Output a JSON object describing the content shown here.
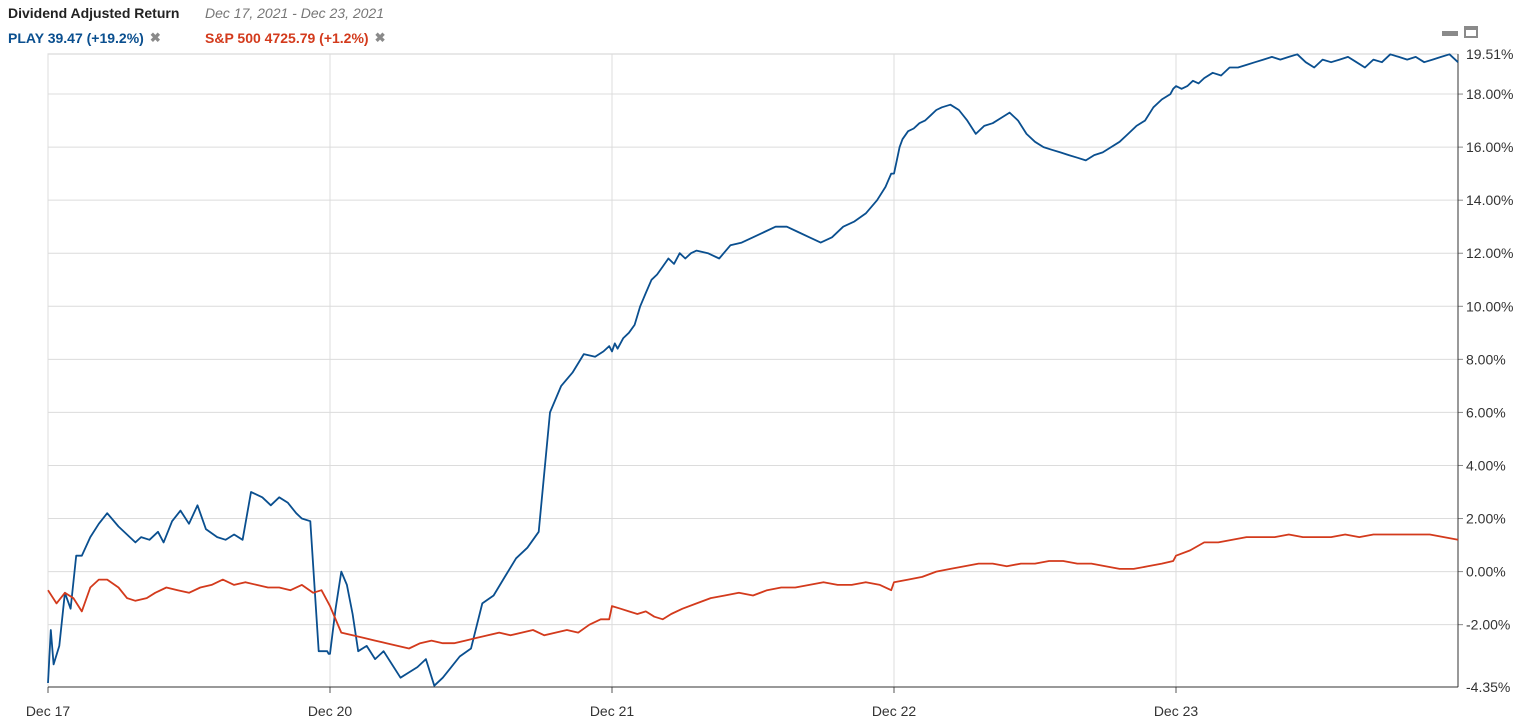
{
  "header": {
    "title": "Dividend Adjusted Return",
    "date_range": "Dec 17, 2021 - Dec 23, 2021"
  },
  "legend": [
    {
      "label": "PLAY 39.47 (+19.2%)",
      "color": "#0a4f8f",
      "remove_icon": "✖"
    },
    {
      "label": "S&P 500 4725.79 (+1.2%)",
      "color": "#d33a1c",
      "remove_icon": "✖"
    }
  ],
  "window_controls": {
    "minimize": "minimize-icon",
    "maximize": "maximize-icon"
  },
  "chart_data": {
    "type": "line",
    "x_ticks": [
      "Dec 17",
      "Dec 20",
      "Dec 21",
      "Dec 22",
      "Dec 23"
    ],
    "y_ticks": [
      "0.00%",
      "2.00%",
      "4.00%",
      "6.00%",
      "8.00%",
      "10.00%",
      "12.00%",
      "14.00%",
      "16.00%",
      "18.00%"
    ],
    "y_tick_values": [
      0,
      2,
      4,
      6,
      8,
      10,
      12,
      14,
      16,
      18
    ],
    "y_extra_ticks": [
      "-2.00%"
    ],
    "y_extra_tick_values": [
      -2
    ],
    "y_max_label": "19.51%",
    "y_min_label": "-4.35%",
    "ylim": [
      -4.35,
      19.51
    ],
    "xlim": [
      0,
      5
    ],
    "grid": true,
    "series": [
      {
        "name": "PLAY",
        "color": "#0a4f8f",
        "x": [
          0,
          0.01,
          0.02,
          0.04,
          0.06,
          0.08,
          0.1,
          0.12,
          0.15,
          0.18,
          0.21,
          0.25,
          0.28,
          0.31,
          0.33,
          0.36,
          0.39,
          0.41,
          0.44,
          0.47,
          0.5,
          0.53,
          0.56,
          0.6,
          0.63,
          0.66,
          0.69,
          0.72,
          0.76,
          0.79,
          0.82,
          0.85,
          0.88,
          0.9,
          0.93,
          0.96,
          0.99,
          0.995,
          1.0,
          1.02,
          1.04,
          1.06,
          1.08,
          1.1,
          1.13,
          1.16,
          1.19,
          1.22,
          1.25,
          1.28,
          1.31,
          1.34,
          1.37,
          1.4,
          1.43,
          1.46,
          1.5,
          1.54,
          1.58,
          1.62,
          1.66,
          1.7,
          1.74,
          1.78,
          1.82,
          1.86,
          1.9,
          1.94,
          1.97,
          1.99,
          2.0,
          2.01,
          2.02,
          2.04,
          2.06,
          2.08,
          2.1,
          2.12,
          2.14,
          2.16,
          2.18,
          2.2,
          2.22,
          2.24,
          2.26,
          2.28,
          2.3,
          2.34,
          2.38,
          2.42,
          2.46,
          2.5,
          2.54,
          2.58,
          2.62,
          2.66,
          2.7,
          2.74,
          2.78,
          2.82,
          2.86,
          2.9,
          2.94,
          2.97,
          2.99,
          3.0,
          3.01,
          3.02,
          3.03,
          3.05,
          3.07,
          3.09,
          3.11,
          3.13,
          3.15,
          3.17,
          3.2,
          3.23,
          3.26,
          3.29,
          3.32,
          3.35,
          3.38,
          3.41,
          3.44,
          3.47,
          3.5,
          3.53,
          3.56,
          3.59,
          3.62,
          3.65,
          3.68,
          3.71,
          3.74,
          3.77,
          3.8,
          3.83,
          3.86,
          3.89,
          3.92,
          3.95,
          3.98,
          3.99,
          4.0,
          4.02,
          4.04,
          4.06,
          4.08,
          4.1,
          4.13,
          4.16,
          4.19,
          4.22,
          4.25,
          4.28,
          4.31,
          4.34,
          4.37,
          4.4,
          4.43,
          4.46,
          4.49,
          4.52,
          4.55,
          4.58,
          4.61,
          4.64,
          4.67,
          4.7,
          4.73,
          4.76,
          4.79,
          4.82,
          4.85,
          4.88,
          4.91,
          4.94,
          4.97,
          5.0
        ],
        "values": [
          -4.2,
          -2.2,
          -3.5,
          -2.8,
          -0.8,
          -1.4,
          0.6,
          0.6,
          1.3,
          1.8,
          2.2,
          1.7,
          1.4,
          1.1,
          1.3,
          1.2,
          1.5,
          1.1,
          1.9,
          2.3,
          1.8,
          2.5,
          1.6,
          1.3,
          1.2,
          1.4,
          1.2,
          3.0,
          2.8,
          2.5,
          2.8,
          2.6,
          2.2,
          2.0,
          1.9,
          -3.0,
          -3.0,
          -3.1,
          -3.1,
          -1.4,
          0.0,
          -0.5,
          -1.6,
          -3.0,
          -2.8,
          -3.3,
          -3.0,
          -3.5,
          -4.0,
          -3.8,
          -3.6,
          -3.3,
          -4.3,
          -4.0,
          -3.6,
          -3.2,
          -2.9,
          -1.2,
          -0.9,
          -0.2,
          0.5,
          0.9,
          1.5,
          6.0,
          7.0,
          7.5,
          8.2,
          8.1,
          8.3,
          8.5,
          8.3,
          8.6,
          8.4,
          8.8,
          9.0,
          9.3,
          10.0,
          10.5,
          11.0,
          11.2,
          11.5,
          11.8,
          11.6,
          12.0,
          11.8,
          12.0,
          12.1,
          12.0,
          11.8,
          12.3,
          12.4,
          12.6,
          12.8,
          13.0,
          13.0,
          12.8,
          12.6,
          12.4,
          12.6,
          13.0,
          13.2,
          13.5,
          14.0,
          14.5,
          15.0,
          15.0,
          15.5,
          16.0,
          16.3,
          16.6,
          16.7,
          16.9,
          17.0,
          17.2,
          17.4,
          17.5,
          17.6,
          17.4,
          17.0,
          16.5,
          16.8,
          16.9,
          17.1,
          17.3,
          17.0,
          16.5,
          16.2,
          16.0,
          15.9,
          15.8,
          15.7,
          15.6,
          15.5,
          15.7,
          15.8,
          16.0,
          16.2,
          16.5,
          16.8,
          17.0,
          17.5,
          17.8,
          18.0,
          18.2,
          18.3,
          18.2,
          18.3,
          18.5,
          18.4,
          18.6,
          18.8,
          18.7,
          19.0,
          19.0,
          19.1,
          19.2,
          19.3,
          19.4,
          19.3,
          19.4,
          19.5,
          19.2,
          19.0,
          19.3,
          19.2,
          19.3,
          19.4,
          19.2,
          19.0,
          19.3,
          19.2,
          19.5,
          19.4,
          19.3,
          19.4,
          19.2,
          19.3,
          19.4,
          19.5,
          19.2
        ]
      },
      {
        "name": "S&P 500",
        "color": "#d33a1c",
        "x": [
          0,
          0.03,
          0.06,
          0.09,
          0.12,
          0.15,
          0.18,
          0.21,
          0.25,
          0.28,
          0.31,
          0.35,
          0.38,
          0.42,
          0.46,
          0.5,
          0.54,
          0.58,
          0.62,
          0.66,
          0.7,
          0.74,
          0.78,
          0.82,
          0.86,
          0.9,
          0.94,
          0.97,
          0.99,
          1.0,
          1.04,
          1.08,
          1.12,
          1.16,
          1.2,
          1.24,
          1.28,
          1.32,
          1.36,
          1.4,
          1.44,
          1.48,
          1.52,
          1.56,
          1.6,
          1.64,
          1.68,
          1.72,
          1.76,
          1.8,
          1.84,
          1.88,
          1.92,
          1.96,
          1.99,
          2.0,
          2.03,
          2.06,
          2.09,
          2.12,
          2.15,
          2.18,
          2.21,
          2.25,
          2.3,
          2.35,
          2.4,
          2.45,
          2.5,
          2.55,
          2.6,
          2.65,
          2.7,
          2.75,
          2.8,
          2.85,
          2.9,
          2.95,
          2.99,
          3.0,
          3.05,
          3.1,
          3.15,
          3.2,
          3.25,
          3.3,
          3.35,
          3.4,
          3.45,
          3.5,
          3.55,
          3.6,
          3.65,
          3.7,
          3.75,
          3.8,
          3.85,
          3.9,
          3.95,
          3.99,
          4.0,
          4.05,
          4.1,
          4.15,
          4.2,
          4.25,
          4.3,
          4.35,
          4.4,
          4.45,
          4.5,
          4.55,
          4.6,
          4.65,
          4.7,
          4.75,
          4.8,
          4.85,
          4.9,
          4.95,
          5.0
        ],
        "values": [
          -0.7,
          -1.2,
          -0.8,
          -1.0,
          -1.5,
          -0.6,
          -0.3,
          -0.3,
          -0.6,
          -1.0,
          -1.1,
          -1.0,
          -0.8,
          -0.6,
          -0.7,
          -0.8,
          -0.6,
          -0.5,
          -0.3,
          -0.5,
          -0.4,
          -0.5,
          -0.6,
          -0.6,
          -0.7,
          -0.5,
          -0.8,
          -0.7,
          -1.1,
          -1.3,
          -2.3,
          -2.4,
          -2.5,
          -2.6,
          -2.7,
          -2.8,
          -2.9,
          -2.7,
          -2.6,
          -2.7,
          -2.7,
          -2.6,
          -2.5,
          -2.4,
          -2.3,
          -2.4,
          -2.3,
          -2.2,
          -2.4,
          -2.3,
          -2.2,
          -2.3,
          -2.0,
          -1.8,
          -1.8,
          -1.3,
          -1.4,
          -1.5,
          -1.6,
          -1.5,
          -1.7,
          -1.8,
          -1.6,
          -1.4,
          -1.2,
          -1.0,
          -0.9,
          -0.8,
          -0.9,
          -0.7,
          -0.6,
          -0.6,
          -0.5,
          -0.4,
          -0.5,
          -0.5,
          -0.4,
          -0.5,
          -0.7,
          -0.4,
          -0.3,
          -0.2,
          0.0,
          0.1,
          0.2,
          0.3,
          0.3,
          0.2,
          0.3,
          0.3,
          0.4,
          0.4,
          0.3,
          0.3,
          0.2,
          0.1,
          0.1,
          0.2,
          0.3,
          0.4,
          0.6,
          0.8,
          1.1,
          1.1,
          1.2,
          1.3,
          1.3,
          1.3,
          1.4,
          1.3,
          1.3,
          1.3,
          1.4,
          1.3,
          1.4,
          1.4,
          1.4,
          1.4,
          1.4,
          1.3,
          1.2
        ]
      }
    ]
  }
}
